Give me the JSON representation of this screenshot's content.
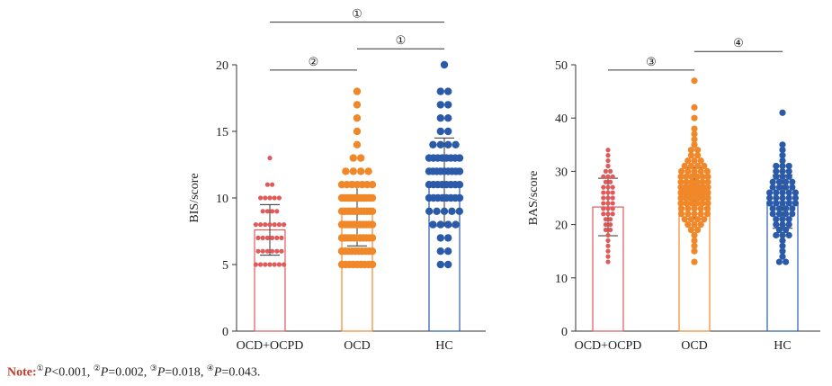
{
  "colors": {
    "ocpd": "#e05a5a",
    "ocd": "#f0882a",
    "hc": "#2a5aa8",
    "axis": "#333333"
  },
  "chart_data": [
    {
      "type": "bar",
      "ylabel": "BIS/score",
      "ylim": [
        0,
        20
      ],
      "yticks": [
        0,
        5,
        10,
        15,
        20
      ],
      "categories": [
        "OCD+OCPD",
        "OCD",
        "HC"
      ],
      "means": [
        7.6,
        8.8,
        11.2
      ],
      "sd": [
        1.9,
        2.4,
        3.3
      ],
      "points": [
        [
          5,
          5,
          5,
          5,
          5,
          5,
          5,
          6,
          6,
          6,
          6,
          6,
          6,
          7,
          7,
          7,
          7,
          7,
          7,
          8,
          8,
          8,
          8,
          8,
          8,
          8,
          9,
          9,
          9,
          9,
          10,
          10,
          10,
          10,
          10,
          11,
          11,
          13
        ],
        [
          5,
          5,
          5,
          5,
          5,
          5,
          5,
          5,
          5,
          6,
          6,
          6,
          6,
          6,
          6,
          6,
          6,
          6,
          6,
          7,
          7,
          7,
          7,
          7,
          7,
          7,
          7,
          7,
          7,
          7,
          8,
          8,
          8,
          8,
          8,
          8,
          8,
          8,
          8,
          8,
          8,
          9,
          9,
          9,
          9,
          9,
          9,
          9,
          9,
          9,
          9,
          9,
          9,
          10,
          10,
          10,
          10,
          10,
          10,
          10,
          10,
          10,
          10,
          10,
          10,
          11,
          11,
          11,
          11,
          11,
          11,
          11,
          12,
          12,
          12,
          12,
          13,
          13,
          14,
          15,
          16,
          17,
          18
        ],
        [
          5,
          5,
          6,
          6,
          7,
          7,
          8,
          8,
          8,
          8,
          9,
          9,
          9,
          9,
          9,
          10,
          10,
          10,
          10,
          10,
          10,
          10,
          10,
          11,
          11,
          11,
          11,
          11,
          11,
          11,
          11,
          12,
          12,
          12,
          12,
          12,
          12,
          12,
          12,
          12,
          13,
          13,
          13,
          13,
          13,
          13,
          13,
          13,
          14,
          14,
          14,
          14,
          15,
          15,
          16,
          16,
          17,
          17,
          18,
          18,
          20
        ]
      ],
      "significance": [
        {
          "label": "②",
          "from": 0,
          "to": 1,
          "y": 19.6
        },
        {
          "label": "①",
          "from": 1,
          "to": 2,
          "y": 21.2
        },
        {
          "label": "①",
          "from": 0,
          "to": 2,
          "y": 23.2
        }
      ]
    },
    {
      "type": "bar",
      "ylabel": "BAS/score",
      "ylim": [
        0,
        50
      ],
      "yticks": [
        0,
        10,
        20,
        30,
        40,
        50
      ],
      "categories": [
        "OCD+OCPD",
        "OCD",
        "HC"
      ],
      "means": [
        23.3,
        25.9,
        24.3
      ],
      "sd": [
        5.4,
        4.8,
        5.0
      ],
      "points": [
        [
          13,
          14,
          15,
          16,
          17,
          18,
          19,
          19,
          20,
          20,
          21,
          21,
          22,
          22,
          22,
          23,
          23,
          23,
          24,
          24,
          24,
          25,
          25,
          25,
          26,
          26,
          26,
          27,
          27,
          27,
          28,
          28,
          29,
          29,
          29,
          30,
          30,
          31,
          32,
          33,
          34
        ],
        [
          13,
          15,
          16,
          17,
          18,
          19,
          19,
          20,
          20,
          20,
          21,
          21,
          21,
          21,
          22,
          22,
          22,
          22,
          22,
          23,
          23,
          23,
          23,
          23,
          24,
          24,
          24,
          24,
          24,
          24,
          25,
          25,
          25,
          25,
          25,
          25,
          25,
          26,
          26,
          26,
          26,
          26,
          26,
          26,
          26,
          27,
          27,
          27,
          27,
          27,
          27,
          27,
          28,
          28,
          28,
          28,
          28,
          28,
          29,
          29,
          29,
          29,
          29,
          29,
          30,
          30,
          30,
          30,
          30,
          31,
          31,
          31,
          31,
          32,
          32,
          32,
          33,
          33,
          34,
          34,
          35,
          36,
          37,
          38,
          40,
          42,
          47
        ],
        [
          13,
          13,
          14,
          15,
          16,
          17,
          18,
          18,
          18,
          19,
          19,
          20,
          20,
          20,
          21,
          21,
          21,
          22,
          22,
          22,
          22,
          23,
          23,
          23,
          23,
          24,
          24,
          24,
          24,
          24,
          25,
          25,
          25,
          25,
          25,
          26,
          26,
          26,
          26,
          26,
          27,
          27,
          27,
          27,
          28,
          28,
          28,
          28,
          29,
          29,
          29,
          30,
          30,
          30,
          31,
          31,
          31,
          32,
          33,
          34,
          35,
          41
        ]
      ],
      "significance": [
        {
          "label": "③",
          "from": 0,
          "to": 1,
          "y": 49.0
        },
        {
          "label": "④",
          "from": 1,
          "to": 2,
          "y": 52.5
        }
      ]
    }
  ],
  "note": {
    "label": "Note",
    "separator": ":",
    "items": [
      {
        "mark": "①",
        "p": "P",
        "value": "<0.001",
        "sep": ", "
      },
      {
        "mark": "②",
        "p": "P",
        "value": "=0.002",
        "sep": ", "
      },
      {
        "mark": "③",
        "p": "P",
        "value": "=0.018",
        "sep": ", "
      },
      {
        "mark": "④",
        "p": "P",
        "value": "=0.043",
        "sep": "."
      }
    ]
  }
}
